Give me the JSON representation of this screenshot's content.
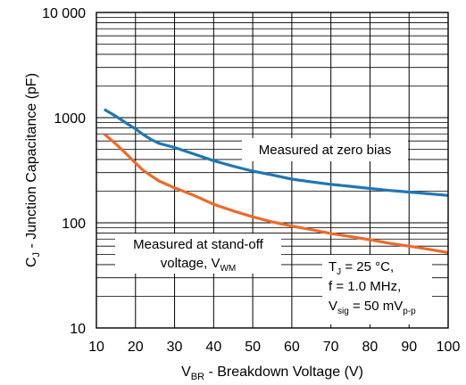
{
  "chart_data": {
    "type": "line",
    "xlabel": {
      "main": "V",
      "sub": "BR",
      "rest": " - Breakdown Voltage (V)"
    },
    "ylabel": {
      "main": "C",
      "sub": "J",
      "rest": " - Junction Capacitance (pF)"
    },
    "xlim": [
      10,
      100
    ],
    "ylim": [
      10,
      10000
    ],
    "y_scale": "log",
    "x_ticks": [
      "10",
      "20",
      "30",
      "40",
      "50",
      "60",
      "70",
      "80",
      "90",
      "100"
    ],
    "y_ticks": [
      "10",
      "100",
      "1000",
      "10 000"
    ],
    "grid": true,
    "series": [
      {
        "label": "Measured at zero bias",
        "color": "#1f77b4",
        "x": [
          12,
          15,
          18,
          20,
          22,
          24,
          26,
          30,
          35,
          40,
          45,
          50,
          55,
          60,
          65,
          70,
          75,
          80,
          85,
          90,
          95,
          100
        ],
        "y": [
          1200,
          1030,
          870,
          780,
          690,
          620,
          570,
          520,
          450,
          390,
          345,
          310,
          285,
          260,
          245,
          232,
          222,
          212,
          203,
          196,
          189,
          182
        ]
      },
      {
        "label_lines": [
          {
            "text": "Measured at stand-off"
          },
          {
            "text": "voltage, V",
            "sub": "WM"
          }
        ],
        "color": "#ed6a2a",
        "x": [
          12,
          15,
          18,
          20,
          22,
          24,
          26,
          30,
          35,
          40,
          45,
          50,
          55,
          60,
          65,
          70,
          75,
          80,
          85,
          90,
          95,
          100
        ],
        "y": [
          700,
          560,
          440,
          370,
          315,
          280,
          250,
          215,
          182,
          150,
          130,
          114,
          102,
          93,
          86,
          79,
          74,
          69,
          64,
          60,
          56,
          52
        ]
      }
    ],
    "conditions": [
      {
        "text": "T",
        "sub": "J",
        "rest": " = 25 °C,"
      },
      {
        "text": "f = 1.0 MHz,"
      },
      {
        "text": "V",
        "sub": "sig",
        "rest": " = 50 mV",
        "sub2": "p-p"
      }
    ],
    "colors": {
      "plot_border": "#000000",
      "grid": "#000000"
    }
  }
}
